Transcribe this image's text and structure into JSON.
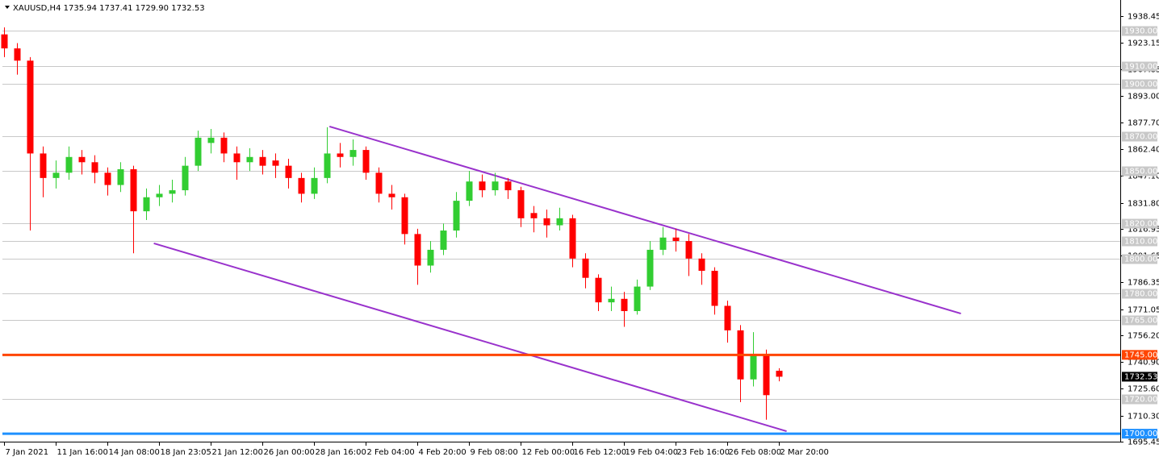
{
  "chart_data": {
    "type": "candlestick",
    "title": "XAUUSD,H4  1735.94 1737.41 1729.90 1732.53",
    "x": [
      0,
      1,
      2,
      3,
      4,
      5,
      6,
      7,
      8,
      9,
      10,
      11,
      12,
      13,
      14,
      15,
      16,
      17,
      18,
      19,
      20,
      21,
      22,
      23,
      24,
      25,
      26,
      27,
      28,
      29,
      30,
      31,
      32,
      33,
      34,
      35,
      36,
      37,
      38,
      39,
      40,
      41,
      42,
      43,
      44,
      45,
      46,
      47,
      48,
      49,
      50,
      51,
      52,
      53,
      54,
      55,
      56,
      57,
      58,
      59,
      60
    ],
    "open": [
      1928,
      1920,
      1913,
      1860,
      1846,
      1849,
      1858,
      1855,
      1849,
      1842,
      1851,
      1827,
      1835,
      1837,
      1839,
      1853,
      1866,
      1869,
      1860,
      1855,
      1858,
      1856,
      1853,
      1846,
      1837,
      1846,
      1860,
      1858,
      1862,
      1849,
      1837,
      1835,
      1814,
      1796,
      1805,
      1816,
      1833,
      1844,
      1839,
      1844,
      1839,
      1826,
      1823,
      1819,
      1823,
      1800,
      1789,
      1775,
      1777,
      1770,
      1784,
      1805,
      1812,
      1810,
      1800,
      1793,
      1773,
      1759,
      1731,
      1745,
      1735.94
    ],
    "high": [
      1932,
      1923,
      1915,
      1864,
      1856,
      1864,
      1862,
      1859,
      1852,
      1855,
      1853,
      1840,
      1842,
      1845,
      1858,
      1873,
      1874,
      1872,
      1864,
      1863,
      1862,
      1860,
      1857,
      1849,
      1852,
      1875,
      1866,
      1868,
      1864,
      1852,
      1842,
      1837,
      1817,
      1810,
      1820,
      1838,
      1850,
      1848,
      1849,
      1846,
      1841,
      1830,
      1828,
      1829,
      1825,
      1803,
      1791,
      1784,
      1781,
      1788,
      1810,
      1818,
      1817,
      1814,
      1803,
      1795,
      1776,
      1762,
      1758,
      1748,
      1737.41
    ],
    "low": [
      1915,
      1905,
      1816,
      1835,
      1840,
      1845,
      1848,
      1843,
      1836,
      1838,
      1803,
      1822,
      1830,
      1832,
      1836,
      1850,
      1860,
      1855,
      1845,
      1850,
      1848,
      1846,
      1840,
      1832,
      1834,
      1843,
      1852,
      1853,
      1845,
      1832,
      1828,
      1808,
      1785,
      1792,
      1802,
      1812,
      1830,
      1835,
      1836,
      1834,
      1818,
      1815,
      1812,
      1816,
      1795,
      1783,
      1770,
      1770,
      1761,
      1768,
      1782,
      1802,
      1804,
      1790,
      1785,
      1768,
      1752,
      1718,
      1727,
      1708,
      1729.9
    ],
    "close": [
      1920,
      1913,
      1860,
      1846,
      1849,
      1858,
      1855,
      1849,
      1842,
      1851,
      1827,
      1835,
      1837,
      1839,
      1853,
      1869,
      1869,
      1860,
      1855,
      1858,
      1853,
      1853,
      1846,
      1837,
      1846,
      1860,
      1858,
      1862,
      1849,
      1837,
      1835,
      1814,
      1796,
      1805,
      1816,
      1833,
      1844,
      1839,
      1844,
      1839,
      1823,
      1823,
      1819,
      1823,
      1800,
      1789,
      1775,
      1777,
      1770,
      1784,
      1805,
      1812,
      1810,
      1800,
      1793,
      1773,
      1759,
      1731,
      1745,
      1722,
      1732.53
    ],
    "up_color": "#32cd32",
    "down_color": "#ff0000",
    "xlim": [
      -0.125,
      86.44
    ],
    "xticks": [
      {
        "value": 0,
        "label": "7 Jan 2021"
      },
      {
        "value": 4,
        "label": "11 Jan 16:00"
      },
      {
        "value": 8,
        "label": "14 Jan 08:00"
      },
      {
        "value": 12,
        "label": "18 Jan 23:05"
      },
      {
        "value": 16,
        "label": "21 Jan 12:00"
      },
      {
        "value": 20,
        "label": "26 Jan 00:00"
      },
      {
        "value": 24,
        "label": "28 Jan 16:00"
      },
      {
        "value": 28,
        "label": "2 Feb 04:00"
      },
      {
        "value": 32,
        "label": "4 Feb 20:00"
      },
      {
        "value": 36,
        "label": "9 Feb 08:00"
      },
      {
        "value": 40,
        "label": "12 Feb 00:00"
      },
      {
        "value": 44,
        "label": "16 Feb 12:00"
      },
      {
        "value": 48,
        "label": "19 Feb 04:00"
      },
      {
        "value": 52,
        "label": "23 Feb 16:00"
      },
      {
        "value": 56,
        "label": "26 Feb 08:00"
      },
      {
        "value": 60,
        "label": "2 Mar 20:00"
      }
    ],
    "ylim": [
      1695.45,
      1946.25
    ],
    "yticks": [
      1938.45,
      1923.15,
      1907.85,
      {
        "value": 1893,
        "label": "1893.00"
      },
      {
        "value": 1877.7,
        "label": "1877.70"
      },
      {
        "value": 1862.4,
        "label": "1862.40"
      },
      {
        "value": 1847.1,
        "label": "1847.10"
      },
      {
        "value": 1831.8,
        "label": "1831.80"
      },
      1816.95,
      1801.65,
      1786.35,
      1771.05,
      {
        "value": 1756.2,
        "label": "1756.20"
      },
      {
        "value": 1740.9,
        "label": "1740.90"
      },
      {
        "value": 1725.6,
        "label": "1725.60"
      },
      {
        "value": 1710.3,
        "label": "1710.30"
      },
      1695.45
    ],
    "levels": [
      {
        "value": 1930,
        "label": "1930.00"
      },
      {
        "value": 1910,
        "label": "1910.00"
      },
      {
        "value": 1900,
        "label": "1900.00"
      },
      {
        "value": 1870,
        "label": "1870.00"
      },
      {
        "value": 1850,
        "label": "1850.00"
      },
      {
        "value": 1820,
        "label": "1820.00"
      },
      {
        "value": 1810,
        "label": "1810.00"
      },
      {
        "value": 1800,
        "label": "1800.00"
      },
      {
        "value": 1780,
        "label": "1780.00"
      },
      {
        "value": 1765,
        "label": "1765.00"
      },
      {
        "value": 1720,
        "label": "1720.00"
      }
    ],
    "level_color": "#c8c8c8",
    "hlines": [
      {
        "value": 1745,
        "label": "1745.00",
        "color": "#ff4500"
      },
      {
        "value": 1700,
        "label": "1700.00",
        "color": "#1e90ff"
      }
    ],
    "last_price": 1732.53,
    "trendlines": [
      {
        "x": [
          25.2,
          74.1
        ],
        "y": [
          1875.4,
          1768.6
        ]
      },
      {
        "x": [
          11.6,
          60.6
        ],
        "y": [
          1808.7,
          1701.4
        ]
      }
    ],
    "trendline_color": "#9932cc"
  }
}
